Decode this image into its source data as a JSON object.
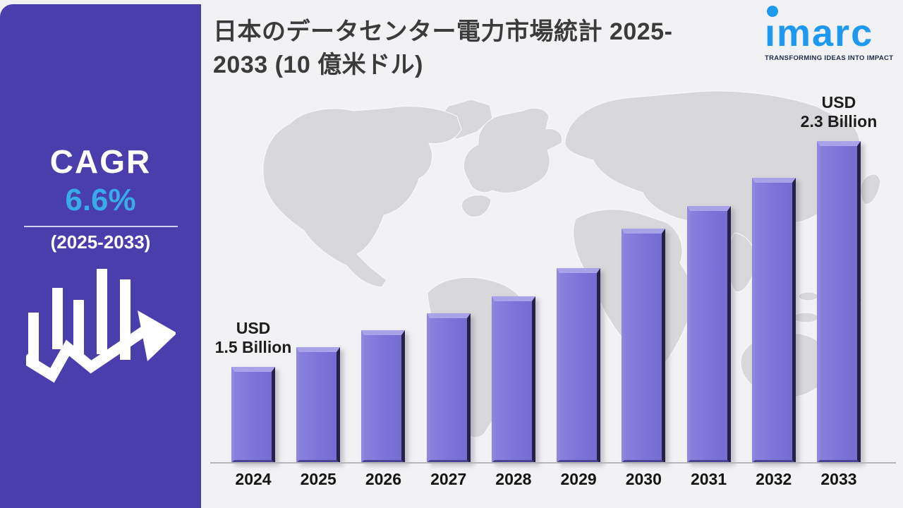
{
  "header": {
    "title_line1": "日本のデータセンター電力市場統計 2025-",
    "title_line2": "2033 (10 億米ドル)"
  },
  "logo": {
    "name": "imarc",
    "tagline": "TRANSFORMING IDEAS INTO IMPACT"
  },
  "sidebar": {
    "cagr_label": "CAGR",
    "cagr_value": "6.6%",
    "period": "(2025-2033)"
  },
  "chart_data": {
    "type": "bar",
    "title": "日本のデータセンター電力市場統計 2025-2033 (10 億米ドル)",
    "unit": "USD Billion",
    "categories": [
      "2024",
      "2025",
      "2026",
      "2027",
      "2028",
      "2029",
      "2030",
      "2031",
      "2032",
      "2033"
    ],
    "values": [
      1.5,
      1.57,
      1.63,
      1.69,
      1.75,
      1.85,
      1.99,
      2.07,
      2.17,
      2.3
    ],
    "ylim": [
      1.16,
      2.3
    ],
    "grid": false,
    "legend": false,
    "background": "world-map silhouette",
    "annotations": [
      {
        "index": 0,
        "line1": "USD",
        "line2": "1.5 Billion"
      },
      {
        "index": 9,
        "line1": "USD",
        "line2": "2.3 Billion"
      }
    ]
  },
  "colors": {
    "sidebar_bg": "#4a3ead",
    "accent_blue": "#38abe9",
    "bar_fill": "#7b72d6",
    "bar_edge_dark": "#262247",
    "logo_blue": "#1d9af0",
    "tagline_navy": "#1c2b4a",
    "map_gray": "#d8d7da",
    "panel_bg": "#f2f1f3",
    "title_text": "#3b3b3b"
  }
}
